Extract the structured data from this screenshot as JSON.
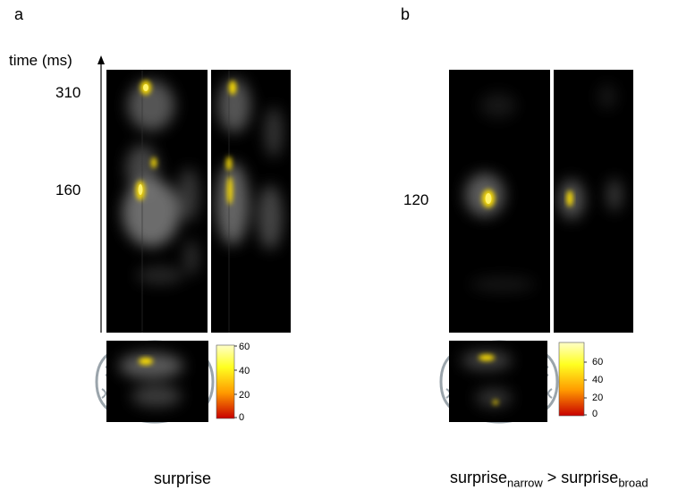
{
  "panels": {
    "a": {
      "letter": "a",
      "y_axis_label": "time (ms)",
      "time_ticks": [
        "310",
        "160"
      ],
      "colorbar_ticks": [
        "60",
        "40",
        "20",
        "0"
      ],
      "caption": "surprise"
    },
    "b": {
      "letter": "b",
      "time_ticks": [
        "120"
      ],
      "colorbar_ticks": [
        "60",
        "40",
        "20",
        "0"
      ],
      "caption_main": "surprise",
      "caption_sub1": "narrow",
      "caption_mid": " > surprise",
      "caption_sub2": "broad"
    }
  },
  "colors": {
    "background": "#000000",
    "blob_gray": "#8a8a8a",
    "significant": "#ffe000",
    "colorbar_top": "#ffffa0",
    "colorbar_mid": "#ffa000",
    "colorbar_bottom": "#cc0000"
  }
}
